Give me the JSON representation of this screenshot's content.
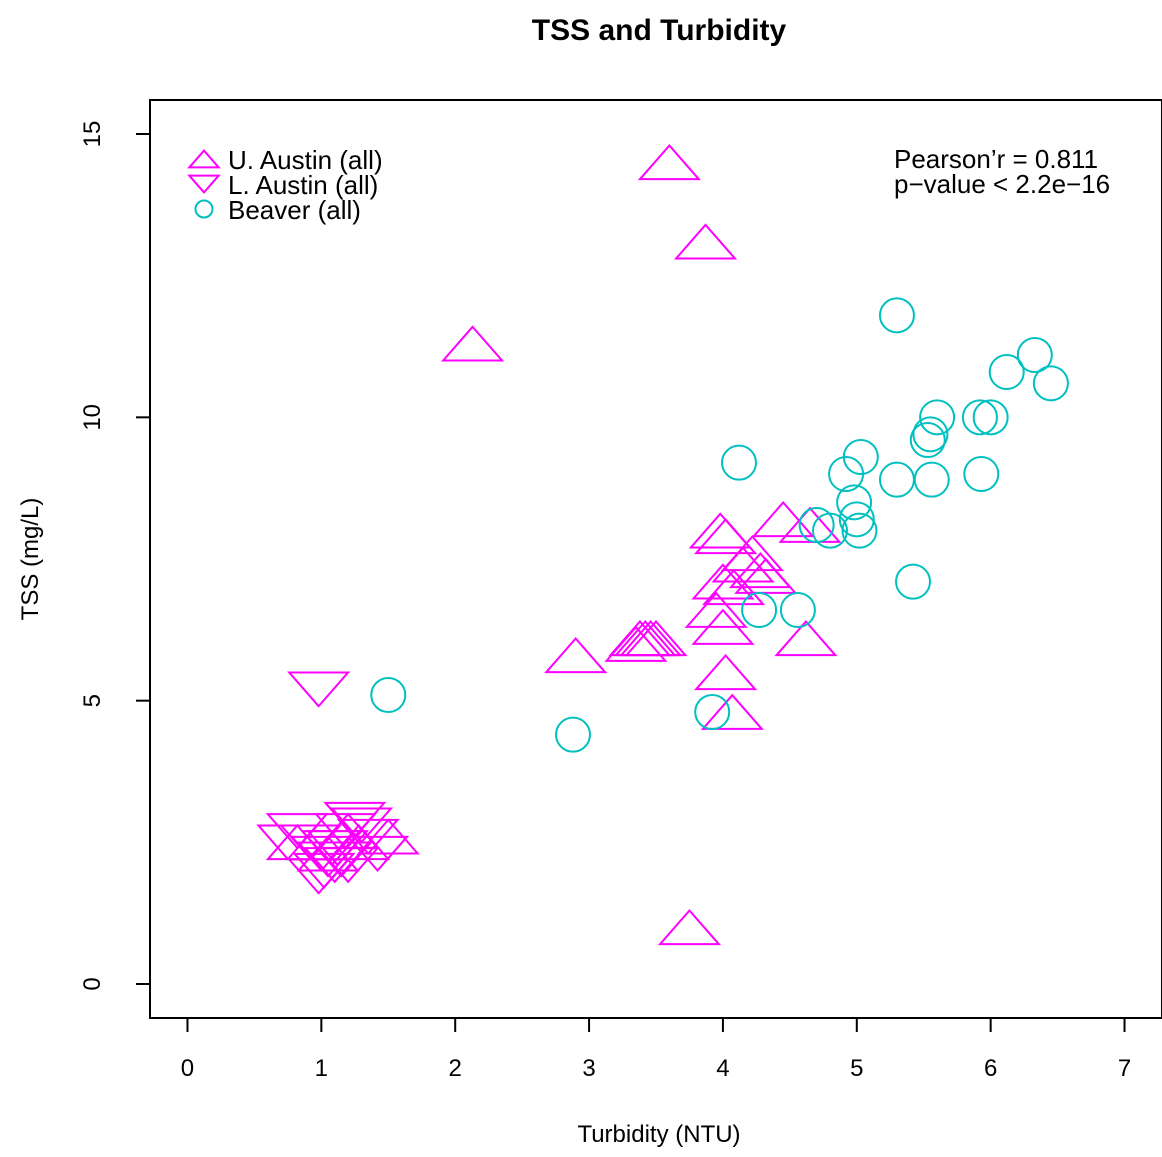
{
  "chart_data": {
    "type": "scatter",
    "title": "TSS and Turbidity",
    "xlabel": "Turbidity (NTU)",
    "ylabel": "TSS (mg/L)",
    "xlim": [
      -0.28,
      7.28
    ],
    "ylim": [
      -0.6,
      15.6
    ],
    "x_ticks": [
      0,
      1,
      2,
      3,
      4,
      5,
      6,
      7
    ],
    "y_ticks": [
      0,
      5,
      10,
      15
    ],
    "grid": false,
    "legend_position": "top-left",
    "annotations": [
      "Pearson’r = 0.811",
      "p−value < 2.2e−16"
    ],
    "series": [
      {
        "name": "U. Austin (all)",
        "marker": "triangle-up",
        "color": "#ff00ff",
        "points": [
          [
            3.6,
            14.5
          ],
          [
            3.87,
            13.1
          ],
          [
            2.13,
            11.3
          ],
          [
            2.9,
            5.8
          ],
          [
            3.75,
            1.0
          ],
          [
            3.35,
            6.0
          ],
          [
            3.38,
            6.1
          ],
          [
            3.42,
            6.1
          ],
          [
            3.46,
            6.1
          ],
          [
            3.5,
            6.1
          ],
          [
            3.98,
            8.0
          ],
          [
            4.02,
            7.9
          ],
          [
            4.45,
            8.2
          ],
          [
            4.65,
            8.1
          ],
          [
            4.22,
            7.6
          ],
          [
            4.15,
            7.4
          ],
          [
            4.28,
            7.3
          ],
          [
            4.32,
            7.2
          ],
          [
            4.0,
            7.1
          ],
          [
            4.08,
            7.0
          ],
          [
            3.95,
            6.6
          ],
          [
            4.0,
            6.3
          ],
          [
            4.62,
            6.1
          ],
          [
            4.02,
            5.5
          ],
          [
            4.07,
            4.8
          ],
          [
            1.5,
            2.6
          ],
          [
            0.82,
            2.5
          ],
          [
            1.05,
            2.3
          ],
          [
            1.2,
            2.7
          ],
          [
            1.28,
            2.5
          ]
        ]
      },
      {
        "name": "L. Austin (all)",
        "marker": "triangle-down",
        "color": "#ff00ff",
        "points": [
          [
            0.98,
            5.2
          ],
          [
            0.82,
            2.7
          ],
          [
            0.92,
            2.5
          ],
          [
            1.0,
            2.3
          ],
          [
            1.05,
            2.2
          ],
          [
            1.1,
            2.1
          ],
          [
            1.02,
            2.0
          ],
          [
            0.98,
            1.9
          ],
          [
            1.15,
            2.2
          ],
          [
            1.2,
            2.1
          ],
          [
            1.3,
            2.8
          ],
          [
            1.25,
            2.9
          ],
          [
            1.35,
            2.6
          ],
          [
            1.42,
            2.3
          ],
          [
            1.12,
            2.4
          ],
          [
            1.08,
            2.4
          ],
          [
            0.75,
            2.5
          ],
          [
            1.18,
            2.7
          ]
        ]
      },
      {
        "name": "Beaver (all)",
        "marker": "circle",
        "color": "#00c0c0",
        "points": [
          [
            5.3,
            11.8
          ],
          [
            6.33,
            11.1
          ],
          [
            6.12,
            10.8
          ],
          [
            6.45,
            10.6
          ],
          [
            5.6,
            10.0
          ],
          [
            5.92,
            10.0
          ],
          [
            6.0,
            10.0
          ],
          [
            5.55,
            9.7
          ],
          [
            5.53,
            9.6
          ],
          [
            5.03,
            9.3
          ],
          [
            4.12,
            9.2
          ],
          [
            4.92,
            9.0
          ],
          [
            5.93,
            9.0
          ],
          [
            5.3,
            8.9
          ],
          [
            5.56,
            8.9
          ],
          [
            4.98,
            8.5
          ],
          [
            5.0,
            8.2
          ],
          [
            5.02,
            8.0
          ],
          [
            4.8,
            8.0
          ],
          [
            4.7,
            8.1
          ],
          [
            5.42,
            7.1
          ],
          [
            4.27,
            6.6
          ],
          [
            4.56,
            6.6
          ],
          [
            3.92,
            4.8
          ],
          [
            2.88,
            4.4
          ],
          [
            1.5,
            5.1
          ]
        ]
      }
    ]
  }
}
